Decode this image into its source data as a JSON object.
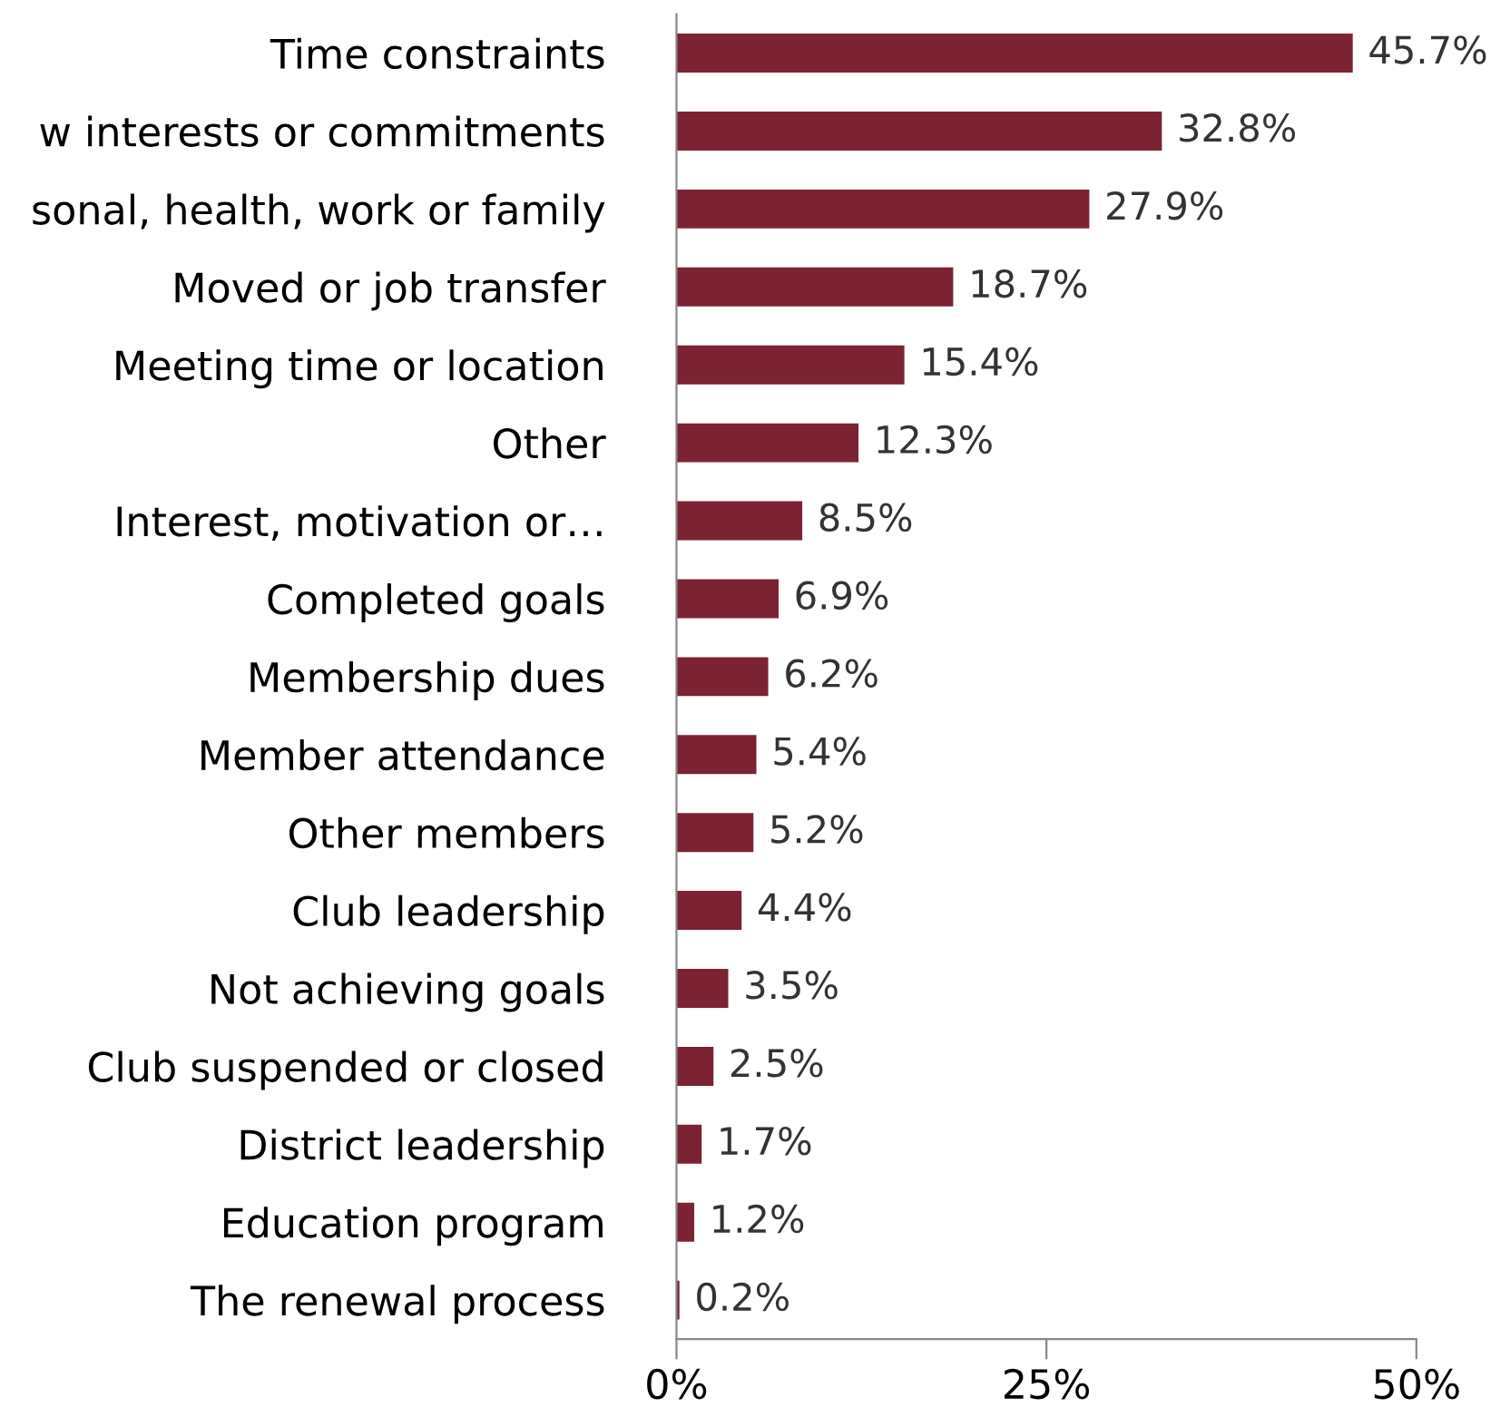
{
  "chart_data": {
    "type": "bar",
    "orientation": "horizontal",
    "categories": [
      "Time constraints",
      "w interests or commitments",
      "sonal, health, work or family",
      "Moved or job transfer",
      "Meeting time or location",
      "Other",
      "Interest, motivation or…",
      "Completed goals",
      "Membership dues",
      "Member attendance",
      "Other members",
      "Club leadership",
      "Not achieving goals",
      "Club suspended or closed",
      "District leadership",
      "Education program",
      "The renewal process"
    ],
    "values": [
      45.7,
      32.8,
      27.9,
      18.7,
      15.4,
      12.3,
      8.5,
      6.9,
      6.2,
      5.4,
      5.2,
      4.4,
      3.5,
      2.5,
      1.7,
      1.2,
      0.2
    ],
    "value_labels": [
      "45.7%",
      "32.8%",
      "27.9%",
      "18.7%",
      "15.4%",
      "12.3%",
      "8.5%",
      "6.9%",
      "6.2%",
      "5.4%",
      "5.2%",
      "4.4%",
      "3.5%",
      "2.5%",
      "1.7%",
      "1.2%",
      "0.2%"
    ],
    "color": "#7b2333",
    "xlim": [
      0,
      50
    ],
    "xticks": [
      {
        "value": 0,
        "label": "0%"
      },
      {
        "value": 25,
        "label": "25%"
      },
      {
        "value": 50,
        "label": "50%"
      }
    ],
    "grid": false,
    "legend": false
  }
}
